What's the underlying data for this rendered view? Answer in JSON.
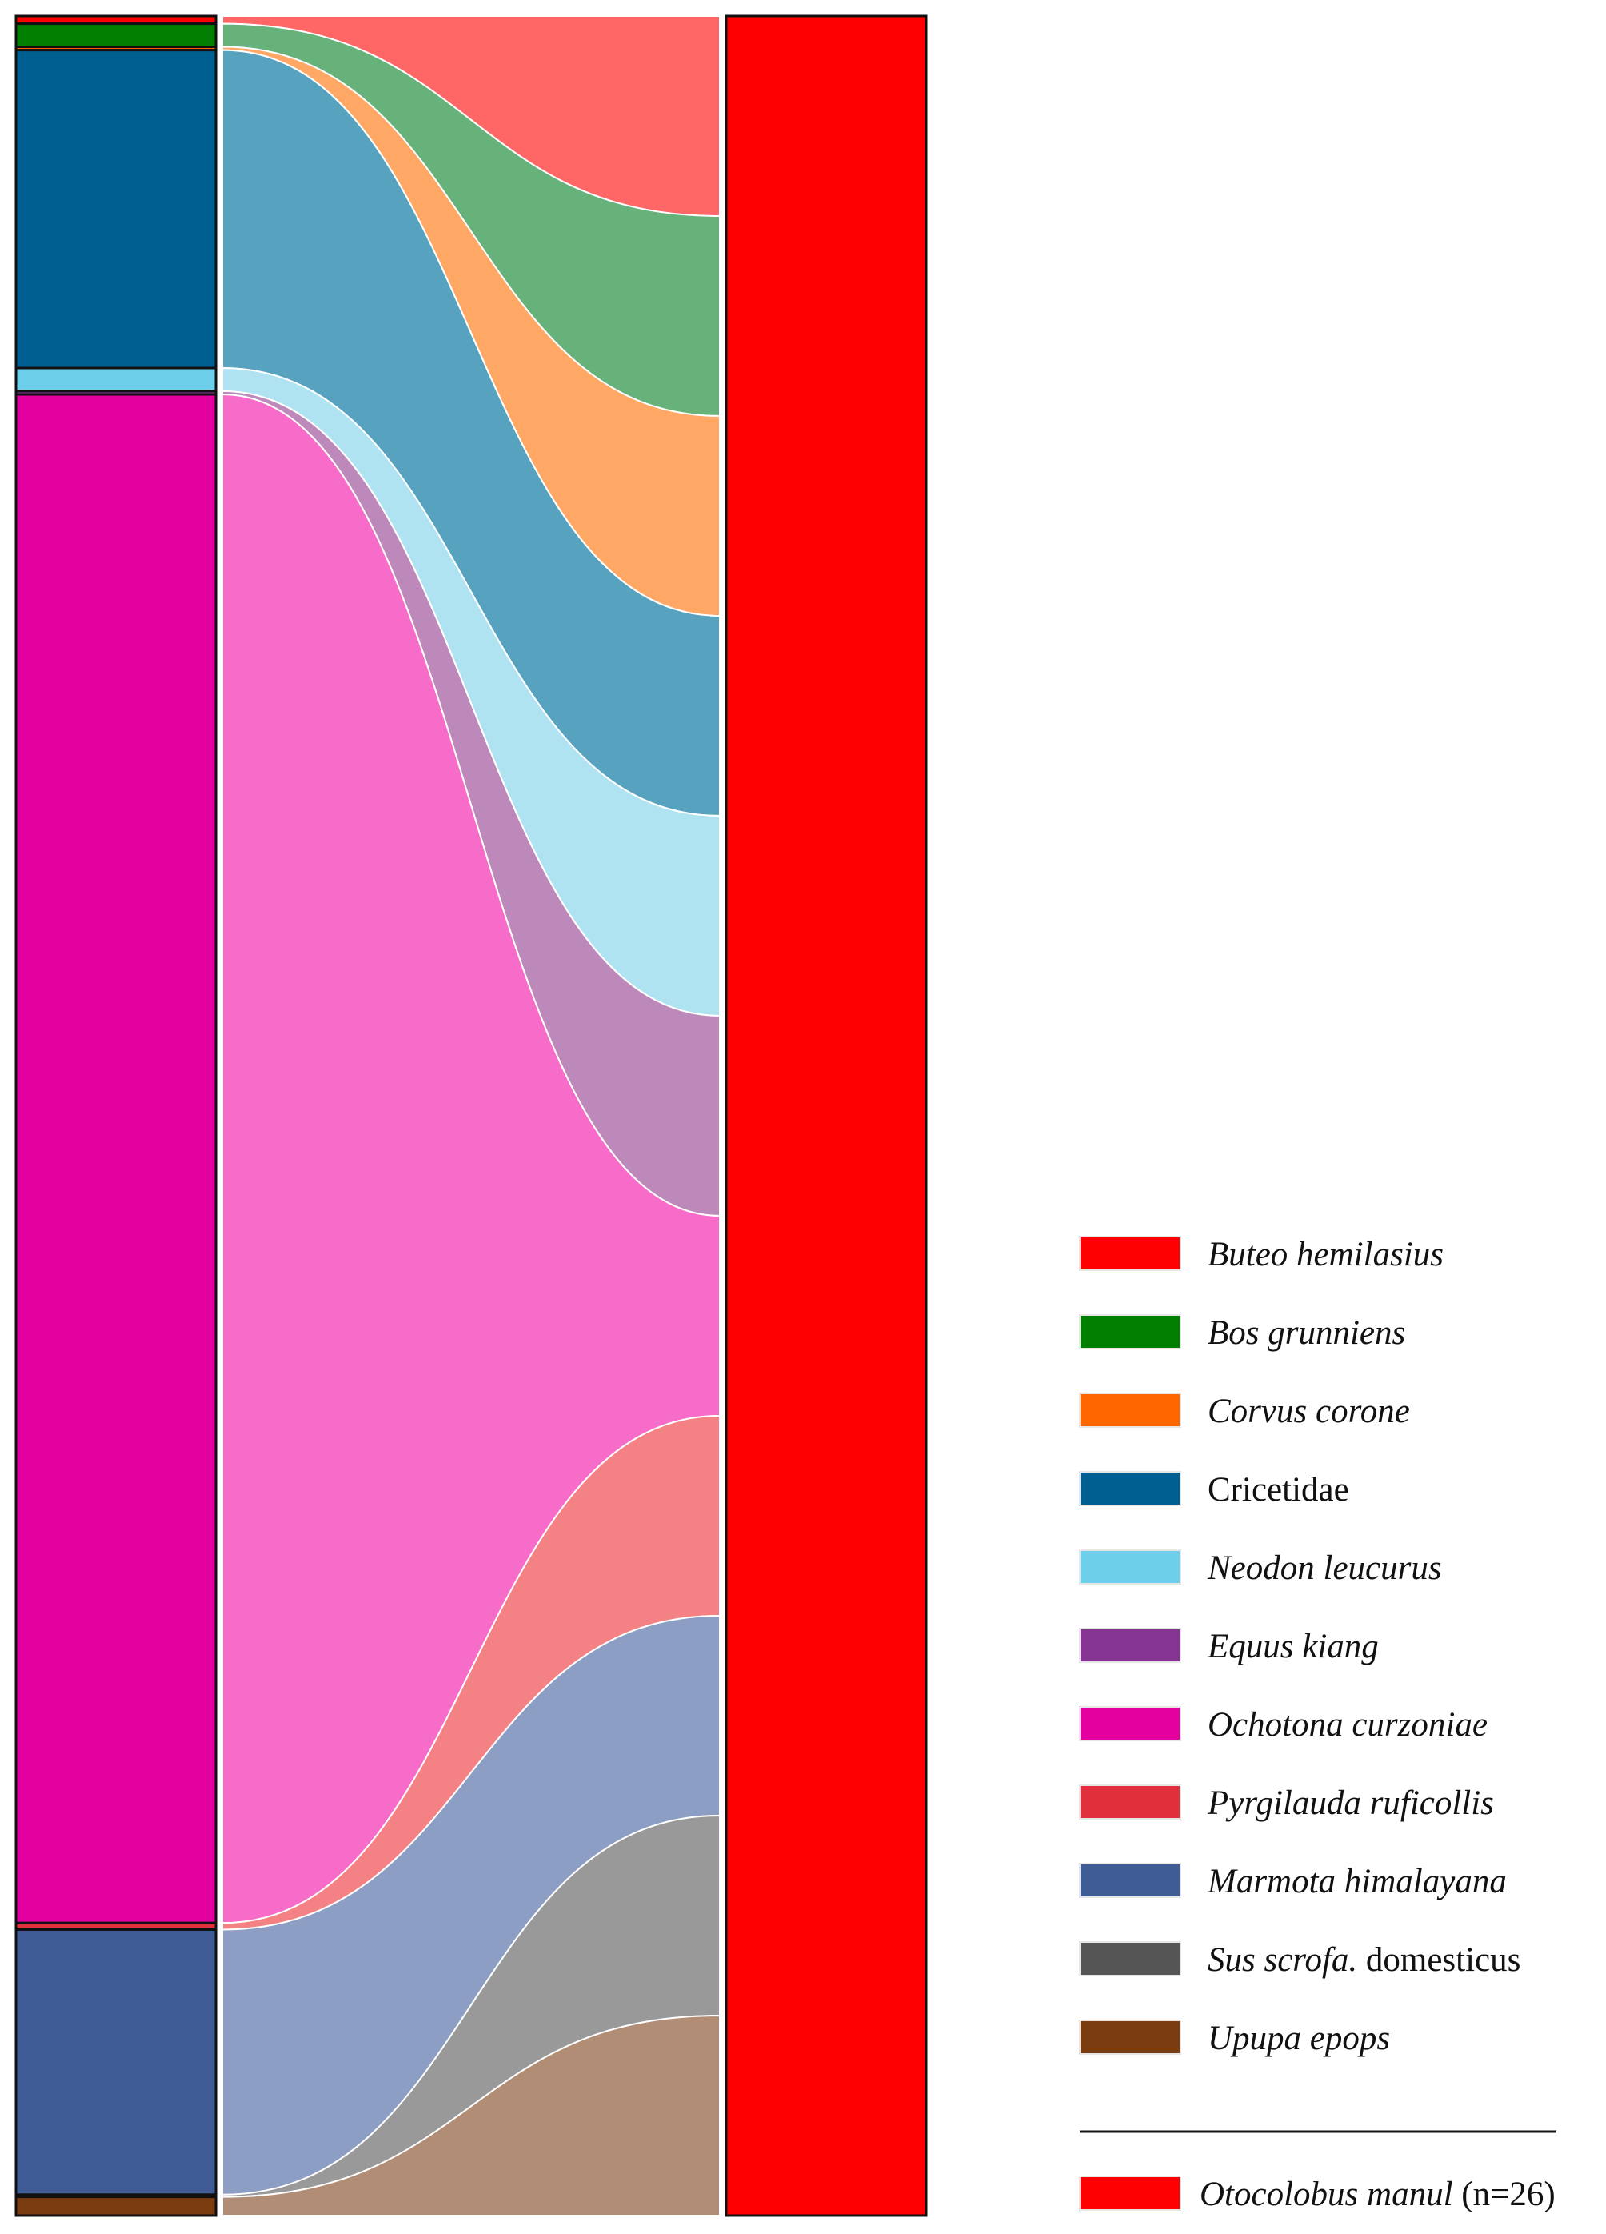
{
  "chart_data": {
    "type": "sankey",
    "title": "",
    "predator": {
      "name": "Otocolobus manul",
      "note": "(n=26)",
      "color": "#ff0000"
    },
    "prey": [
      {
        "name": "Buteo hemilasius",
        "italic": true,
        "color": "#ff0000",
        "flow_color": "#ff6666",
        "share": 0.0035
      },
      {
        "name": "Bos grunniens",
        "italic": true,
        "color": "#007f00",
        "flow_color": "#66b27a",
        "share": 0.0105
      },
      {
        "name": "Corvus corone",
        "italic": true,
        "color": "#ff6600",
        "flow_color": "#ffa866",
        "share": 0.0015
      },
      {
        "name": "Cricetidae",
        "italic": false,
        "color": "#005f91",
        "flow_color": "#57a2bf",
        "share": 0.1445
      },
      {
        "name": "Neodon leucurus",
        "italic": true,
        "color": "#6ecfeb",
        "flow_color": "#b0e3f2",
        "share": 0.0105
      },
      {
        "name": "Equus kiang",
        "italic": true,
        "color": "#863494",
        "flow_color": "#bd89ba",
        "share": 0.0015
      },
      {
        "name": "Ochotona curzoniae",
        "italic": true,
        "color": "#e3009f",
        "flow_color": "#f76cc8",
        "share": 0.695
      },
      {
        "name": "Pyrgilauda ruficollis",
        "italic": true,
        "color": "#e0303c",
        "flow_color": "#f48285",
        "share": 0.003
      },
      {
        "name": "Marmota himalayana",
        "italic": true,
        "color": "#3f5c96",
        "flow_color": "#8d9ec4",
        "share": 0.1205
      },
      {
        "name": "Sus scrofa. domesticus",
        "italic_part": "Sus scrofa.",
        "plain_part": " domesticus",
        "color": "#555555",
        "flow_color": "#999999",
        "share": 0.001
      },
      {
        "name": "Upupa epops",
        "italic": true,
        "color": "#7b3c10",
        "flow_color": "#b08d74",
        "share": 0.0085
      }
    ]
  }
}
